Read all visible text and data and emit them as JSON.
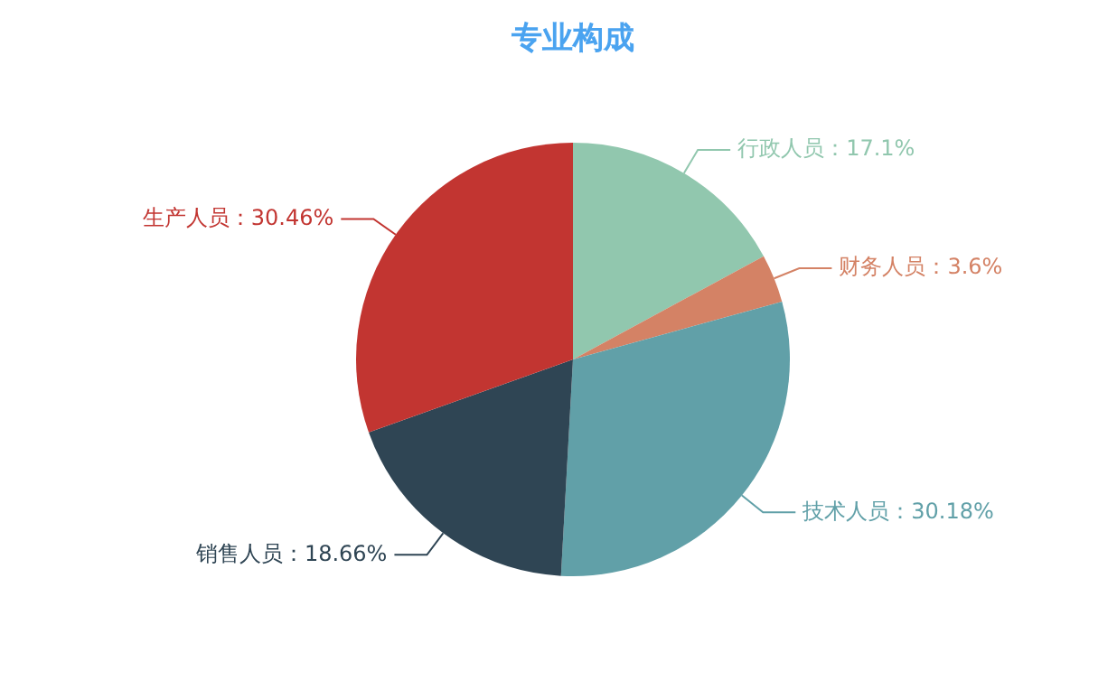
{
  "chart_data": {
    "type": "pie",
    "title": "专业构成",
    "categories": [
      "行政人员",
      "财务人员",
      "技术人员",
      "销售人员",
      "生产人员"
    ],
    "values": [
      17.1,
      3.6,
      30.18,
      18.66,
      30.46
    ],
    "colors": [
      "#91c7ae",
      "#d48265",
      "#61a0a8",
      "#2f4554",
      "#c23531"
    ],
    "value_labels": [
      "17.1%",
      "3.6%",
      "30.18%",
      "18.66%",
      "30.46%"
    ],
    "legend": false
  }
}
